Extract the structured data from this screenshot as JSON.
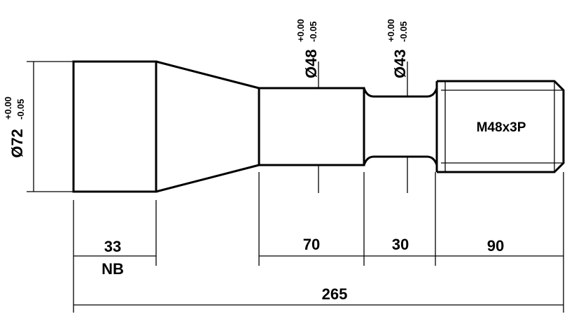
{
  "drawing": {
    "diameters": {
      "d72": {
        "label": "Ø72",
        "tol_upper": "+0.00",
        "tol_lower": "-0.05"
      },
      "d48": {
        "label": "Ø48",
        "tol_upper": "+0.00",
        "tol_lower": "-0.05"
      },
      "d43": {
        "label": "Ø43",
        "tol_upper": "+0.00",
        "tol_lower": "-0.05"
      }
    },
    "thread_label": "M48x3P",
    "lengths": {
      "head": "33",
      "head_note": "NB",
      "shank": "70",
      "neck": "30",
      "thread": "90",
      "overall": "265"
    },
    "colors": {
      "line": "#000000",
      "background": "#ffffff"
    }
  }
}
